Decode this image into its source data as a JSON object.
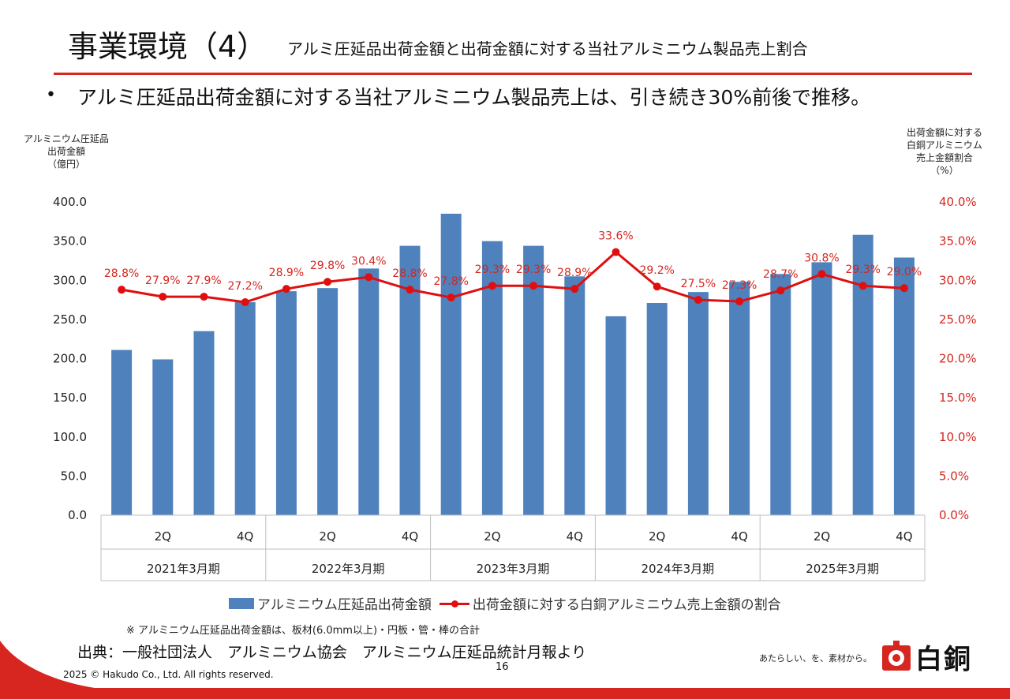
{
  "header": {
    "title": "事業環境（4）",
    "subtitle": "アルミ圧延品出荷金額と出荷金額に対する当社アルミニウム製品売上割合"
  },
  "bullet": {
    "marker": "•",
    "text": "アルミ圧延品出荷金額に対する当社アルミニウム製品売上は、引き続き30%前後で推移。"
  },
  "chart_data": {
    "type": "bar",
    "left_axis_title": [
      "アルミニウム圧延品",
      "出荷金額",
      "（億円）"
    ],
    "right_axis_title": [
      "出荷金額に対する",
      "白銅アルミニウム",
      "売上金額割合",
      "（%）"
    ],
    "y_left": {
      "min": 0,
      "max": 400,
      "step": 50,
      "tick_labels": [
        "0.0",
        "50.0",
        "100.0",
        "150.0",
        "200.0",
        "250.0",
        "300.0",
        "350.0",
        "400.0"
      ]
    },
    "y_right": {
      "min": 0,
      "max": 40,
      "step": 5,
      "tick_labels": [
        "0.0%",
        "5.0%",
        "10.0%",
        "15.0%",
        "20.0%",
        "25.0%",
        "30.0%",
        "35.0%",
        "40.0%"
      ]
    },
    "quarter_labels": [
      "",
      "2Q",
      "",
      "4Q",
      "",
      "2Q",
      "",
      "4Q",
      "",
      "2Q",
      "",
      "4Q",
      "",
      "2Q",
      "",
      "4Q",
      "",
      "2Q",
      "",
      "4Q"
    ],
    "groups": [
      "2021年3月期",
      "2022年3月期",
      "2023年3月期",
      "2024年3月期",
      "2025年3月期"
    ],
    "series": [
      {
        "name": "アルミニウム圧延品出荷金額",
        "kind": "bar",
        "color": "#4f81bd",
        "values": [
          211,
          199,
          235,
          272,
          286,
          290,
          315,
          344,
          385,
          350,
          344,
          305,
          254,
          271,
          285,
          298,
          308,
          323,
          358,
          329
        ]
      },
      {
        "name": "出荷金額に対する白銅アルミニウム売上金額の割合",
        "kind": "line",
        "axis": "right",
        "color": "#e00f0f",
        "values": [
          28.8,
          27.9,
          27.9,
          27.2,
          28.9,
          29.8,
          30.4,
          28.8,
          27.8,
          29.3,
          29.3,
          28.9,
          33.6,
          29.2,
          27.5,
          27.3,
          28.7,
          30.8,
          29.3,
          29.0
        ],
        "labels": [
          "28.8%",
          "27.9%",
          "27.9%",
          "27.2%",
          "28.9%",
          "29.8%",
          "30.4%",
          "28.8%",
          "27.8%",
          "29.3%",
          "29.3%",
          "28.9%",
          "33.6%",
          "29.2%",
          "27.5%",
          "27.3%",
          "28.7%",
          "30.8%",
          "29.3%",
          "29.0%"
        ]
      }
    ],
    "grid": false,
    "legend_position": "bottom"
  },
  "note": "※ アルミニウム圧延品出荷金額は、板材(6.0mm以上)・円板・管・棒の合計",
  "source": "出典：一般社団法人　アルミニウム協会　アルミニウム圧延品統計月報より",
  "page_number": "16",
  "copyright": "2025 © Hakudo Co., Ltd. All rights reserved.",
  "brand": {
    "tagline": "あたらしい、を、素材から。",
    "name": "白銅",
    "accent": "#d6261f"
  }
}
